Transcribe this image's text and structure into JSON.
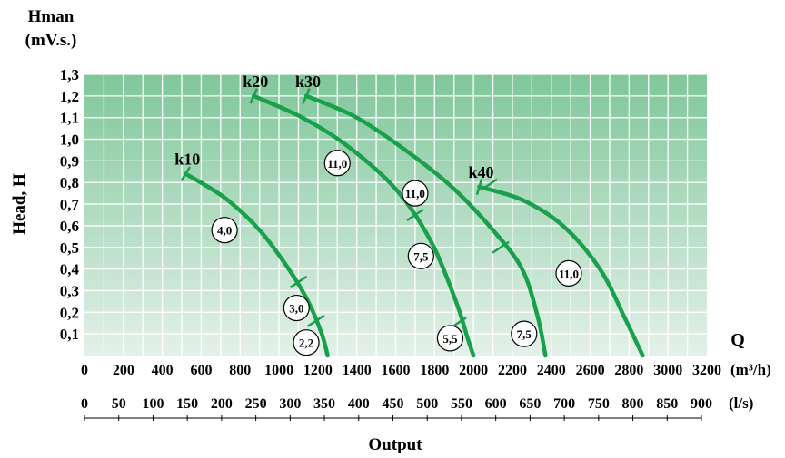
{
  "chart_data": {
    "type": "line",
    "y_top_label_line1": "Hman",
    "y_top_label_line2": "(mV.s.)",
    "ylabel": "Head, H",
    "x_end_label": "Q",
    "x_unit_m3h": "(m³/h)",
    "x_unit_ls": "(l/s)",
    "xlabel": "Output",
    "ylim": [
      0,
      1.3
    ],
    "xlim_m3h": [
      0,
      3200
    ],
    "y_ticks": [
      "0,1",
      "0,2",
      "0,3",
      "0,4",
      "0,5",
      "0,6",
      "0,7",
      "0,8",
      "0,9",
      "1,0",
      "1,1",
      "1,2",
      "1,3"
    ],
    "x_ticks_m3h": [
      "0",
      "200",
      "400",
      "600",
      "800",
      "1000",
      "1200",
      "1400",
      "1600",
      "1800",
      "2000",
      "2200",
      "2400",
      "2600",
      "2800",
      "3000",
      "3200"
    ],
    "x_ticks_ls": [
      "0",
      "50",
      "100",
      "150",
      "200",
      "250",
      "300",
      "350",
      "400",
      "450",
      "500",
      "550",
      "600",
      "650",
      "700",
      "750",
      "800",
      "850",
      "900"
    ],
    "grid": true,
    "colors": {
      "gradient_top": "#7fc79a",
      "gradient_bottom": "#e4f1e8",
      "curve": "#18a04a",
      "grid": "#ffffff"
    },
    "series": [
      {
        "name": "k10",
        "points": [
          [
            520,
            0.84
          ],
          [
            720,
            0.73
          ],
          [
            900,
            0.58
          ],
          [
            1050,
            0.4
          ],
          [
            1150,
            0.25
          ],
          [
            1220,
            0.1
          ],
          [
            1250,
            0.0
          ]
        ],
        "ticks": [
          [
            1100,
            0.34
          ],
          [
            1190,
            0.16
          ]
        ],
        "labels": [
          {
            "text": "4,0",
            "at": [
              720,
              0.58
            ]
          },
          {
            "text": "3,0",
            "at": [
              1090,
              0.22
            ]
          },
          {
            "text": "2,2",
            "at": [
              1140,
              0.06
            ]
          }
        ]
      },
      {
        "name": "k20",
        "points": [
          [
            870,
            1.2
          ],
          [
            1120,
            1.1
          ],
          [
            1350,
            0.97
          ],
          [
            1600,
            0.77
          ],
          [
            1780,
            0.53
          ],
          [
            1910,
            0.25
          ],
          [
            1970,
            0.08
          ],
          [
            2000,
            0.0
          ]
        ],
        "ticks": [
          [
            1700,
            0.65
          ],
          [
            1920,
            0.15
          ]
        ],
        "labels": [
          {
            "text": "11,0",
            "at": [
              1300,
              0.89
            ]
          },
          {
            "text": "7,5",
            "at": [
              1730,
              0.46
            ]
          },
          {
            "text": "5,5",
            "at": [
              1880,
              0.08
            ]
          }
        ]
      },
      {
        "name": "k30",
        "points": [
          [
            1140,
            1.2
          ],
          [
            1400,
            1.1
          ],
          [
            1680,
            0.93
          ],
          [
            1900,
            0.77
          ],
          [
            2100,
            0.58
          ],
          [
            2250,
            0.4
          ],
          [
            2330,
            0.18
          ],
          [
            2370,
            0.0
          ]
        ],
        "ticks": [
          [
            2140,
            0.5
          ]
        ],
        "labels": [
          {
            "text": "11,0",
            "at": [
              1700,
              0.75
            ]
          },
          {
            "text": "7,5",
            "at": [
              2260,
              0.1
            ]
          }
        ]
      },
      {
        "name": "k40",
        "points": [
          [
            2030,
            0.78
          ],
          [
            2250,
            0.72
          ],
          [
            2460,
            0.6
          ],
          [
            2650,
            0.4
          ],
          [
            2780,
            0.17
          ],
          [
            2870,
            0.0
          ]
        ],
        "ticks": [
          [
            2080,
            0.79
          ]
        ],
        "labels": [
          {
            "text": "11,0",
            "at": [
              2490,
              0.38
            ]
          }
        ]
      }
    ]
  }
}
